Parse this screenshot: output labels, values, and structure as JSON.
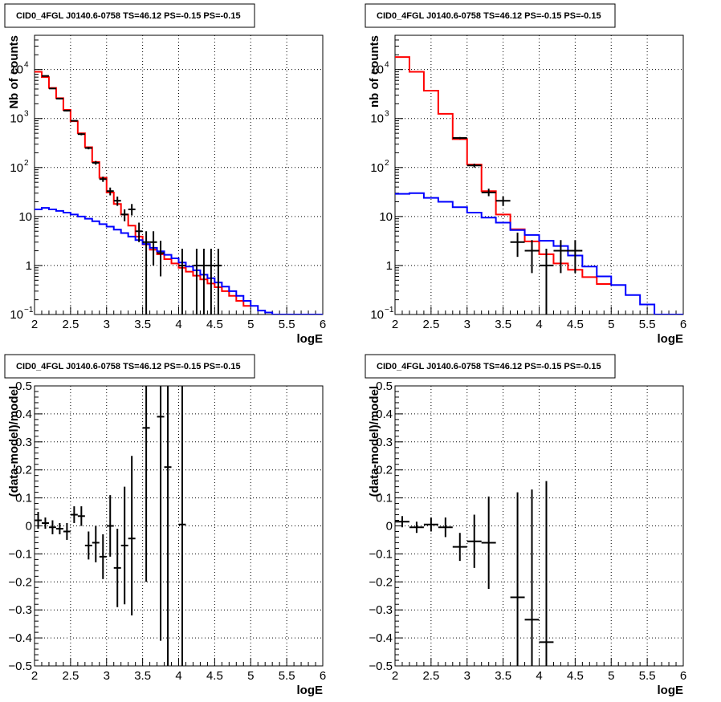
{
  "chart_data": [
    {
      "id": "tl",
      "type": "line",
      "title": "CID0_4FGL J0140.6-0758 TS=46.12 PS=-0.15 PS=-0.15",
      "xlabel": "logE",
      "ylabel": "Nb of counts",
      "xlim": [
        2,
        6
      ],
      "ylim": [
        0.1,
        50000
      ],
      "yscale": "log",
      "grid": true,
      "xticks": [
        "2",
        "2.5",
        "3",
        "3.5",
        "4",
        "4.5",
        "5",
        "5.5",
        "6"
      ],
      "yticks": [
        {
          "value": 0.1,
          "base": "10",
          "exp": "−1"
        },
        {
          "value": 1,
          "label": "1"
        },
        {
          "value": 10,
          "label": "10"
        },
        {
          "value": 100,
          "base": "10",
          "exp": "2"
        },
        {
          "value": 1000,
          "base": "10",
          "exp": "3"
        },
        {
          "value": 10000,
          "base": "10",
          "exp": "4"
        }
      ],
      "series": [
        {
          "kind": "step",
          "color": "#ff0000",
          "edges": [
            2.0,
            2.1,
            2.2,
            2.3,
            2.4,
            2.5,
            2.6,
            2.7,
            2.8,
            2.9,
            3.0,
            3.1,
            3.2,
            3.3,
            3.4,
            3.5,
            3.6,
            3.7,
            3.8,
            3.9,
            4.0,
            4.1,
            4.2,
            4.3,
            4.4,
            4.5,
            4.6,
            4.7,
            4.8,
            4.9,
            5.0
          ],
          "values": [
            9000,
            7000,
            4200,
            2600,
            1500,
            880,
            500,
            260,
            130,
            62,
            31,
            18,
            11,
            6.5,
            3.9,
            2.7,
            2.1,
            1.7,
            1.35,
            1.1,
            0.9,
            0.75,
            0.62,
            0.52,
            0.43,
            0.36,
            0.3,
            0.24,
            0.19,
            0.15
          ]
        },
        {
          "kind": "step",
          "color": "#0000ff",
          "edges": [
            2.0,
            2.1,
            2.2,
            2.3,
            2.4,
            2.5,
            2.6,
            2.7,
            2.8,
            2.9,
            3.0,
            3.1,
            3.2,
            3.3,
            3.4,
            3.5,
            3.6,
            3.7,
            3.8,
            3.9,
            4.0,
            4.1,
            4.2,
            4.3,
            4.4,
            4.5,
            4.6,
            4.7,
            4.8,
            4.9,
            5.0,
            5.1,
            5.2,
            5.3,
            5.4,
            5.5,
            5.6,
            5.7,
            5.8,
            5.9,
            6.0
          ],
          "values": [
            14,
            15,
            14,
            13,
            12,
            11,
            10,
            9,
            8,
            7,
            6.2,
            5.4,
            4.6,
            3.9,
            3.3,
            2.75,
            2.3,
            1.95,
            1.65,
            1.4,
            1.15,
            0.95,
            0.8,
            0.65,
            0.55,
            0.45,
            0.37,
            0.3,
            0.24,
            0.19,
            0.15,
            0.12,
            0.11,
            0.1,
            0.1,
            0.1,
            0.1,
            0.1,
            0.1,
            0.1
          ]
        },
        {
          "kind": "points",
          "color": "#000000",
          "points": [
            {
              "x": 2.15,
              "y": 7400,
              "lo": 7250,
              "hi": 7550,
              "xerr": 0.05
            },
            {
              "x": 2.25,
              "y": 4100,
              "lo": 4000,
              "hi": 4200,
              "xerr": 0.05
            },
            {
              "x": 2.35,
              "y": 2550,
              "lo": 2460,
              "hi": 2640,
              "xerr": 0.05
            },
            {
              "x": 2.45,
              "y": 1450,
              "lo": 1400,
              "hi": 1500,
              "xerr": 0.05
            },
            {
              "x": 2.55,
              "y": 900,
              "lo": 870,
              "hi": 930,
              "xerr": 0.05
            },
            {
              "x": 2.65,
              "y": 480,
              "lo": 455,
              "hi": 505,
              "xerr": 0.05
            },
            {
              "x": 2.75,
              "y": 250,
              "lo": 235,
              "hi": 265,
              "xerr": 0.05
            },
            {
              "x": 2.85,
              "y": 125,
              "lo": 114,
              "hi": 136,
              "xerr": 0.05
            },
            {
              "x": 2.95,
              "y": 58,
              "lo": 51,
              "hi": 65,
              "xerr": 0.05
            },
            {
              "x": 3.05,
              "y": 33,
              "lo": 27,
              "hi": 39,
              "xerr": 0.05
            },
            {
              "x": 3.15,
              "y": 21,
              "lo": 16.5,
              "hi": 25.5,
              "xerr": 0.05
            },
            {
              "x": 3.25,
              "y": 11,
              "lo": 8,
              "hi": 14,
              "xerr": 0.05
            },
            {
              "x": 3.35,
              "y": 14,
              "lo": 10.5,
              "hi": 18,
              "xerr": 0.05
            },
            {
              "x": 3.45,
              "y": 5,
              "lo": 3,
              "hi": 7.5,
              "xerr": 0.05
            },
            {
              "x": 3.55,
              "y": 3,
              "lo": 0.1,
              "hi": 5,
              "xerr": 0.05
            },
            {
              "x": 3.65,
              "y": 3,
              "lo": 1,
              "hi": 5,
              "xerr": 0.05
            },
            {
              "x": 3.75,
              "y": 1.8,
              "lo": 0.6,
              "hi": 3.2,
              "xerr": 0.05
            },
            {
              "x": 4.05,
              "y": 1,
              "lo": 0.1,
              "hi": 2.2,
              "xerr": 0.05
            },
            {
              "x": 4.25,
              "y": 1,
              "lo": 0.1,
              "hi": 2.2,
              "xerr": 0.05
            },
            {
              "x": 4.35,
              "y": 1,
              "lo": 0.1,
              "hi": 2.2,
              "xerr": 0.05
            },
            {
              "x": 4.45,
              "y": 1,
              "lo": 0.1,
              "hi": 2.2,
              "xerr": 0.05
            },
            {
              "x": 4.55,
              "y": 1,
              "lo": 0.1,
              "hi": 2.2,
              "xerr": 0.05
            }
          ]
        }
      ]
    },
    {
      "id": "tr",
      "type": "line",
      "title": "CID0_4FGL J0140.6-0758 TS=46.12 PS=-0.15 PS=-0.15",
      "xlabel": "logE",
      "ylabel": "nb of counts",
      "xlim": [
        2,
        6
      ],
      "ylim": [
        0.1,
        50000
      ],
      "yscale": "log",
      "grid": true,
      "xticks": [
        "2",
        "2.5",
        "3",
        "3.5",
        "4",
        "4.5",
        "5",
        "5.5",
        "6"
      ],
      "yticks": [
        {
          "value": 0.1,
          "base": "10",
          "exp": "−1"
        },
        {
          "value": 1,
          "label": "1"
        },
        {
          "value": 10,
          "label": "10"
        },
        {
          "value": 100,
          "base": "10",
          "exp": "2"
        },
        {
          "value": 1000,
          "base": "10",
          "exp": "3"
        },
        {
          "value": 10000,
          "base": "10",
          "exp": "4"
        }
      ],
      "series": [
        {
          "kind": "step",
          "color": "#ff0000",
          "edges": [
            2.0,
            2.2,
            2.4,
            2.6,
            2.8,
            3.0,
            3.2,
            3.4,
            3.6,
            3.8,
            4.0,
            4.2,
            4.4,
            4.6,
            4.8,
            5.0
          ],
          "values": [
            18000,
            9000,
            3700,
            1250,
            380,
            115,
            33,
            11,
            5.5,
            3.1,
            1.7,
            1.1,
            0.82,
            0.58,
            0.42
          ]
        },
        {
          "kind": "step",
          "color": "#0000ff",
          "edges": [
            2.0,
            2.2,
            2.4,
            2.6,
            2.8,
            3.0,
            3.2,
            3.4,
            3.6,
            3.8,
            4.0,
            4.2,
            4.4,
            4.6,
            4.8,
            5.0,
            5.2,
            5.4,
            5.6,
            5.8,
            6.0
          ],
          "values": [
            29,
            30,
            24,
            20,
            15.5,
            12,
            9.5,
            7.5,
            5.3,
            4.2,
            3.2,
            2.5,
            1.6,
            0.95,
            0.6,
            0.4,
            0.25,
            0.16,
            0.1,
            0.1
          ]
        },
        {
          "kind": "points",
          "color": "#000000",
          "points": [
            {
              "x": 2.9,
              "y": 400,
              "lo": 380,
              "hi": 420,
              "xerr": 0.1
            },
            {
              "x": 3.1,
              "y": 110,
              "lo": 100,
              "hi": 120,
              "xerr": 0.1
            },
            {
              "x": 3.3,
              "y": 31,
              "lo": 26,
              "hi": 37,
              "xerr": 0.1
            },
            {
              "x": 3.5,
              "y": 21,
              "lo": 16.5,
              "hi": 25.5,
              "xerr": 0.1
            },
            {
              "x": 3.7,
              "y": 3,
              "lo": 1.5,
              "hi": 4.7,
              "xerr": 0.1
            },
            {
              "x": 3.9,
              "y": 2,
              "lo": 0.7,
              "hi": 3.3,
              "xerr": 0.1
            },
            {
              "x": 4.1,
              "y": 1,
              "lo": 0.1,
              "hi": 2.2,
              "xerr": 0.1
            },
            {
              "x": 4.3,
              "y": 2,
              "lo": 0.7,
              "hi": 3.3,
              "xerr": 0.1
            },
            {
              "x": 4.5,
              "y": 2,
              "lo": 0.7,
              "hi": 3.3,
              "xerr": 0.1
            }
          ]
        }
      ]
    },
    {
      "id": "bl",
      "type": "scatter",
      "title": "CID0_4FGL J0140.6-0758 TS=46.12 PS=-0.15 PS=-0.15",
      "xlabel": "logE",
      "ylabel": "(data-model)/model",
      "xlim": [
        2,
        6
      ],
      "ylim": [
        -0.5,
        0.5
      ],
      "yscale": "linear",
      "grid": true,
      "xticks": [
        "2",
        "2.5",
        "3",
        "3.5",
        "4",
        "4.5",
        "5",
        "5.5",
        "6"
      ],
      "yticks": [
        {
          "value": -0.5,
          "label": "−0.5"
        },
        {
          "value": -0.4,
          "label": "−0.4"
        },
        {
          "value": -0.3,
          "label": "−0.3"
        },
        {
          "value": -0.2,
          "label": "−0.2"
        },
        {
          "value": -0.1,
          "label": "−0.1"
        },
        {
          "value": 0,
          "label": "0"
        },
        {
          "value": 0.1,
          "label": "0.1"
        },
        {
          "value": 0.2,
          "label": "0.2"
        },
        {
          "value": 0.3,
          "label": "0.3"
        },
        {
          "value": 0.4,
          "label": "0.4"
        },
        {
          "value": 0.5,
          "label": "0.5"
        }
      ],
      "series": [
        {
          "kind": "points",
          "color": "#000000",
          "points": [
            {
              "x": 2.05,
              "y": 0.02,
              "lo": -0.01,
              "hi": 0.05,
              "xerr": 0.05
            },
            {
              "x": 2.15,
              "y": 0.01,
              "lo": -0.01,
              "hi": 0.03,
              "xerr": 0.05
            },
            {
              "x": 2.25,
              "y": -0.005,
              "lo": -0.03,
              "hi": 0.02,
              "xerr": 0.05
            },
            {
              "x": 2.35,
              "y": -0.01,
              "lo": -0.03,
              "hi": 0.01,
              "xerr": 0.05
            },
            {
              "x": 2.45,
              "y": -0.02,
              "lo": -0.05,
              "hi": 0.01,
              "xerr": 0.05
            },
            {
              "x": 2.55,
              "y": 0.04,
              "lo": 0.01,
              "hi": 0.07,
              "xerr": 0.05
            },
            {
              "x": 2.65,
              "y": 0.035,
              "lo": 0.0,
              "hi": 0.07,
              "xerr": 0.05
            },
            {
              "x": 2.75,
              "y": -0.07,
              "lo": -0.12,
              "hi": -0.02,
              "xerr": 0.05
            },
            {
              "x": 2.85,
              "y": -0.06,
              "lo": -0.13,
              "hi": 0.0,
              "xerr": 0.05
            },
            {
              "x": 2.95,
              "y": -0.11,
              "lo": -0.19,
              "hi": -0.03,
              "xerr": 0.05
            },
            {
              "x": 3.05,
              "y": 0.0,
              "lo": -0.11,
              "hi": 0.11,
              "xerr": 0.05
            },
            {
              "x": 3.15,
              "y": -0.15,
              "lo": -0.29,
              "hi": -0.01,
              "xerr": 0.05
            },
            {
              "x": 3.25,
              "y": -0.07,
              "lo": -0.28,
              "hi": 0.14,
              "xerr": 0.05
            },
            {
              "x": 3.35,
              "y": -0.045,
              "lo": -0.32,
              "hi": 0.25,
              "xerr": 0.05
            },
            {
              "x": 3.55,
              "y": 0.35,
              "lo": -0.2,
              "hi": 0.5,
              "xerr": 0.05
            },
            {
              "x": 3.75,
              "y": 0.39,
              "lo": -0.41,
              "hi": 0.5,
              "xerr": 0.05
            },
            {
              "x": 3.85,
              "y": 0.21,
              "lo": -0.5,
              "hi": 0.5,
              "xerr": 0.05
            },
            {
              "x": 4.05,
              "y": 0.005,
              "lo": -0.5,
              "hi": 0.5,
              "xerr": 0.05
            }
          ]
        }
      ]
    },
    {
      "id": "br",
      "type": "scatter",
      "title": "CID0_4FGL J0140.6-0758 TS=46.12 PS=-0.15 PS=-0.15",
      "xlabel": "logE",
      "ylabel": "(data-model)/model",
      "xlim": [
        2,
        6
      ],
      "ylim": [
        -0.5,
        0.5
      ],
      "yscale": "linear",
      "grid": true,
      "xticks": [
        "2",
        "2.5",
        "3",
        "3.5",
        "4",
        "4.5",
        "5",
        "5.5",
        "6"
      ],
      "yticks": [
        {
          "value": -0.5,
          "label": "−0.5"
        },
        {
          "value": -0.4,
          "label": "−0.4"
        },
        {
          "value": -0.3,
          "label": "−0.3"
        },
        {
          "value": -0.2,
          "label": "−0.2"
        },
        {
          "value": -0.1,
          "label": "−0.1"
        },
        {
          "value": 0,
          "label": "0"
        },
        {
          "value": 0.1,
          "label": "0.1"
        },
        {
          "value": 0.2,
          "label": "0.2"
        },
        {
          "value": 0.3,
          "label": "0.3"
        },
        {
          "value": 0.4,
          "label": "0.4"
        },
        {
          "value": 0.5,
          "label": "0.5"
        }
      ],
      "series": [
        {
          "kind": "points",
          "color": "#000000",
          "points": [
            {
              "x": 2.1,
              "y": 0.015,
              "lo": -0.005,
              "hi": 0.035,
              "xerr": 0.1
            },
            {
              "x": 2.3,
              "y": -0.005,
              "lo": -0.025,
              "hi": 0.015,
              "xerr": 0.1
            },
            {
              "x": 2.5,
              "y": 0.005,
              "lo": -0.02,
              "hi": 0.03,
              "xerr": 0.1
            },
            {
              "x": 2.7,
              "y": -0.005,
              "lo": -0.04,
              "hi": 0.03,
              "xerr": 0.1
            },
            {
              "x": 2.9,
              "y": -0.075,
              "lo": -0.125,
              "hi": -0.025,
              "xerr": 0.1
            },
            {
              "x": 3.1,
              "y": -0.055,
              "lo": -0.15,
              "hi": 0.04,
              "xerr": 0.1
            },
            {
              "x": 3.3,
              "y": -0.06,
              "lo": -0.225,
              "hi": 0.105,
              "xerr": 0.1
            },
            {
              "x": 3.7,
              "y": -0.255,
              "lo": -0.5,
              "hi": 0.12,
              "xerr": 0.1
            },
            {
              "x": 3.9,
              "y": -0.335,
              "lo": -0.5,
              "hi": 0.13,
              "xerr": 0.1
            },
            {
              "x": 4.1,
              "y": -0.415,
              "lo": -0.5,
              "hi": 0.16,
              "xerr": 0.1
            }
          ]
        }
      ]
    }
  ]
}
